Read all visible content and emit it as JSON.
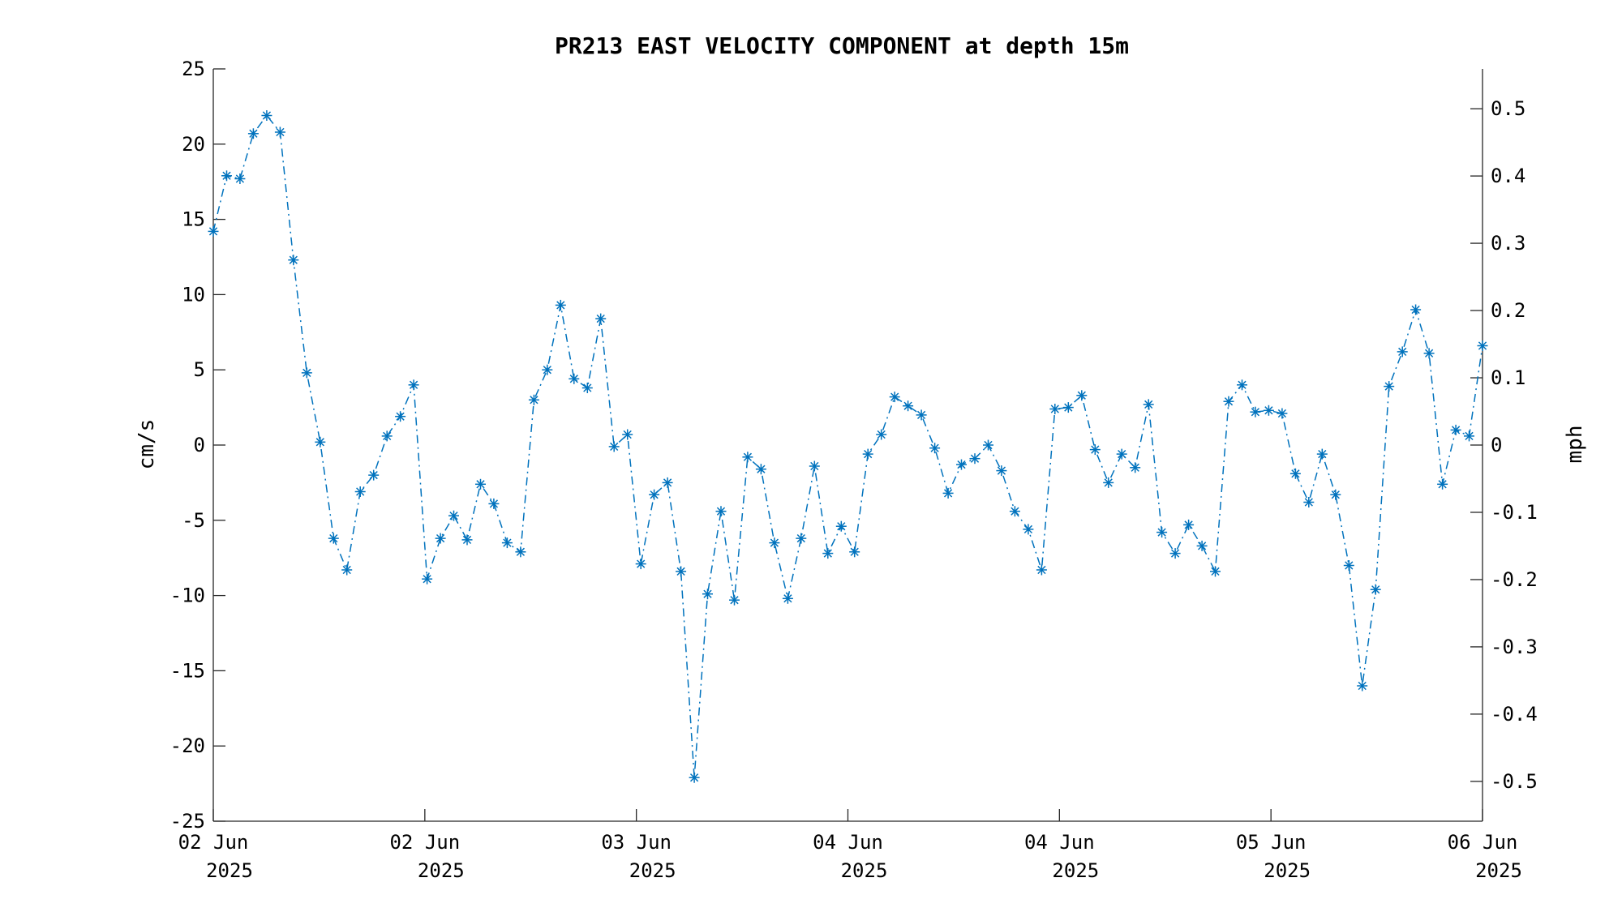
{
  "chart_data": {
    "type": "line",
    "title": "PR213 EAST VELOCITY COMPONENT at depth 15m",
    "ylabel": "cm/s",
    "y2label": "mph",
    "ylim": [
      -25,
      25
    ],
    "y2lim": [
      -0.5592,
      0.5592
    ],
    "yticks": [
      "25",
      "20",
      "15",
      "10",
      "5",
      "0",
      "-5",
      "-10",
      "-15",
      "-20",
      "-25"
    ],
    "y2ticks": [
      "0.5",
      "0.4",
      "0.3",
      "0.2",
      "0.1",
      "0",
      "-0.1",
      "-0.2",
      "-0.3",
      "-0.4",
      "-0.5"
    ],
    "xticks": [
      {
        "line1": "02 Jun",
        "line2": "2025"
      },
      {
        "line1": "02 Jun",
        "line2": "2025"
      },
      {
        "line1": "03 Jun",
        "line2": "2025"
      },
      {
        "line1": "04 Jun",
        "line2": "2025"
      },
      {
        "line1": "04 Jun",
        "line2": "2025"
      },
      {
        "line1": "05 Jun",
        "line2": "2025"
      },
      {
        "line1": "06 Jun",
        "line2": "2025"
      }
    ],
    "grid": false,
    "line_style": "dash-dot",
    "marker": "asterisk",
    "color": "#0072BD",
    "series": [
      {
        "values": [
          14.2,
          17.9,
          17.7,
          20.7,
          21.9,
          20.8,
          12.3,
          4.8,
          0.2,
          -6.2,
          -8.3,
          -3.1,
          -2.0,
          0.6,
          1.9,
          4.0,
          -8.9,
          -6.2,
          -4.7,
          -6.3,
          -2.6,
          -3.9,
          -6.5,
          -7.1,
          3.0,
          5.0,
          9.3,
          4.4,
          3.8,
          8.4,
          -0.1,
          0.7,
          -7.9,
          -3.3,
          -2.5,
          -8.4,
          -22.1,
          -9.9,
          -4.4,
          -10.3,
          -0.8,
          -1.6,
          -6.5,
          -10.2,
          -6.2,
          -1.4,
          -7.2,
          -5.4,
          -7.1,
          -0.6,
          0.7,
          3.2,
          2.6,
          2.0,
          -0.2,
          -3.2,
          -1.3,
          -0.9,
          0.0,
          -1.7,
          -4.4,
          -5.6,
          -8.3,
          2.4,
          2.5,
          3.3,
          -0.3,
          -2.5,
          -0.6,
          -1.5,
          2.7,
          -5.8,
          -7.2,
          -5.3,
          -6.7,
          -8.4,
          2.9,
          4.0,
          2.2,
          2.3,
          2.1,
          -1.9,
          -3.8,
          -0.6,
          -3.3,
          -8.0,
          -16.0,
          -9.6,
          3.9,
          6.2,
          9.0,
          6.1,
          -2.6,
          1.0,
          0.6,
          6.6
        ]
      }
    ]
  }
}
